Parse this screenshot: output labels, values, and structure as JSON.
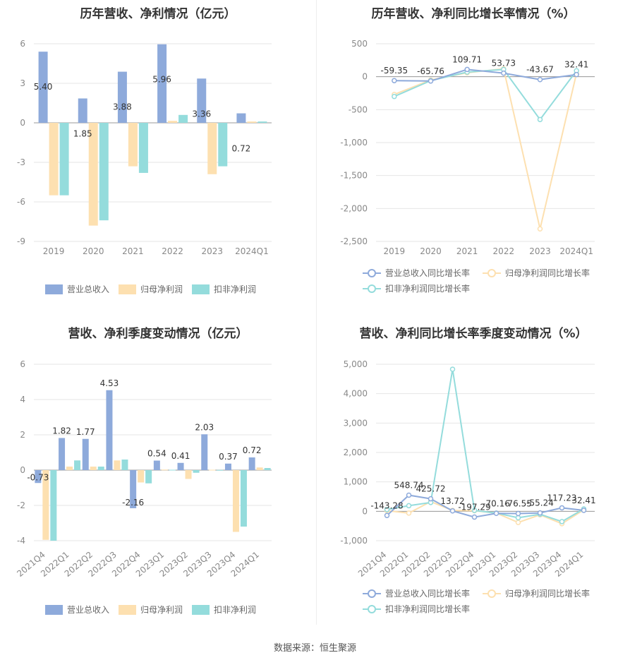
{
  "colors": {
    "revenue": "#8eaadb",
    "net_profit": "#fde0b0",
    "deducted_net_profit": "#94dcdc",
    "grid": "#e6e6e6",
    "axis_text": "#888888"
  },
  "legend_bar": [
    "营业总收入",
    "归母净利润",
    "扣非净利润"
  ],
  "legend_line": [
    "营业总收入同比增长率",
    "归母净利润同比增长率",
    "扣非净利润同比增长率"
  ],
  "source": "数据来源：恒生聚源",
  "chart_data": [
    {
      "id": "annual_amounts",
      "type": "bar",
      "title": "历年营收、净利情况（亿元）",
      "categories": [
        "2019",
        "2020",
        "2021",
        "2022",
        "2023",
        "2024Q1"
      ],
      "ylim": [
        -9,
        6
      ],
      "yticks": [
        6,
        3,
        0,
        -3,
        -6,
        -9
      ],
      "series": [
        {
          "name": "营业总收入",
          "values": [
            5.4,
            1.85,
            3.88,
            5.96,
            3.36,
            0.72
          ],
          "labels": [
            "5.40",
            "1.85",
            "3.88",
            "5.96",
            "3.36",
            "0.72"
          ]
        },
        {
          "name": "归母净利润",
          "values": [
            -5.5,
            -7.8,
            -3.3,
            0.15,
            -3.9,
            0.1
          ]
        },
        {
          "name": "扣非净利润",
          "values": [
            -5.5,
            -7.4,
            -3.8,
            0.6,
            -3.3,
            0.1
          ]
        }
      ],
      "grid": true,
      "legend": "bottom"
    },
    {
      "id": "annual_growth",
      "type": "line",
      "title": "历年营收、净利同比增长率情况（%）",
      "categories": [
        "2019",
        "2020",
        "2021",
        "2022",
        "2023",
        "2024Q1"
      ],
      "ylim": [
        -2500,
        500
      ],
      "yticks": [
        500,
        0,
        -500,
        -1000,
        -1500,
        -2000,
        -2500
      ],
      "ytick_labels": [
        "500",
        "0",
        "-500",
        "-1,000",
        "-1,500",
        "-2,000",
        "-2,500"
      ],
      "series": [
        {
          "name": "营业总收入同比增长率",
          "values": [
            -59.35,
            -65.76,
            109.71,
            53.73,
            -43.67,
            32.41
          ],
          "labels": [
            "-59.35",
            "-65.76",
            "109.71",
            "53.73",
            "-43.67",
            "32.41"
          ]
        },
        {
          "name": "归母净利润同比增长率",
          "values": [
            -270,
            -50,
            60,
            120,
            -2310,
            50
          ]
        },
        {
          "name": "扣非净利润同比增长率",
          "values": [
            -300,
            -60,
            70,
            110,
            -650,
            90
          ]
        }
      ],
      "grid": true,
      "legend": "bottom"
    },
    {
      "id": "quarterly_amounts",
      "type": "bar",
      "title": "营收、净利季度变动情况（亿元）",
      "categories": [
        "2021Q4",
        "2022Q1",
        "2022Q2",
        "2022Q3",
        "2022Q4",
        "2023Q1",
        "2023Q2",
        "2023Q3",
        "2023Q4",
        "2024Q1"
      ],
      "ylim": [
        -4,
        6
      ],
      "yticks": [
        6,
        4,
        2,
        0,
        -2,
        -4
      ],
      "series": [
        {
          "name": "营业总收入",
          "values": [
            -0.73,
            1.82,
            1.77,
            4.53,
            -2.16,
            0.54,
            0.41,
            2.03,
            0.37,
            0.72
          ],
          "labels": [
            "-0.73",
            "1.82",
            "1.77",
            "4.53",
            "-2.16",
            "0.54",
            "0.41",
            "2.03",
            "0.37",
            "0.72"
          ]
        },
        {
          "name": "归母净利润",
          "values": [
            -3.95,
            0.2,
            0.2,
            0.55,
            -0.7,
            0.03,
            -0.5,
            0.02,
            -3.5,
            0.15
          ]
        },
        {
          "name": "扣非净利润",
          "values": [
            -4.0,
            0.55,
            0.2,
            0.6,
            -0.75,
            0.02,
            -0.15,
            0.01,
            -3.2,
            0.12
          ]
        }
      ],
      "grid": true,
      "legend": "bottom"
    },
    {
      "id": "quarterly_growth",
      "type": "line",
      "title": "营收、净利同比增长率季度变动情况（%）",
      "categories": [
        "2021Q4",
        "2022Q1",
        "2022Q2",
        "2022Q3",
        "2022Q4",
        "2023Q1",
        "2023Q2",
        "2023Q3",
        "2023Q4",
        "2024Q1"
      ],
      "ylim": [
        -1000,
        5000
      ],
      "yticks": [
        5000,
        4000,
        3000,
        2000,
        1000,
        0,
        -1000
      ],
      "ytick_labels": [
        "5,000",
        "4,000",
        "3,000",
        "2,000",
        "1,000",
        "0",
        "-1,000"
      ],
      "series": [
        {
          "name": "营业总收入同比增长率",
          "values": [
            -143.28,
            548.74,
            425.72,
            13.72,
            -197.29,
            -70.16,
            -76.55,
            -55.24,
            117.23,
            32.41
          ],
          "labels": [
            "-143.28",
            "548.74",
            "425.72",
            "13.72",
            "-197.29",
            "-70.16",
            "-76.55",
            "-55.24",
            "117.23",
            "32.41"
          ]
        },
        {
          "name": "归母净利润同比增长率",
          "values": [
            20,
            -60,
            330,
            30,
            20,
            -60,
            -380,
            -120,
            -420,
            50
          ]
        },
        {
          "name": "扣非净利润同比增长率",
          "values": [
            60,
            190,
            300,
            4830,
            30,
            -60,
            -220,
            -100,
            -350,
            80
          ]
        }
      ],
      "grid": true,
      "legend": "bottom"
    }
  ]
}
